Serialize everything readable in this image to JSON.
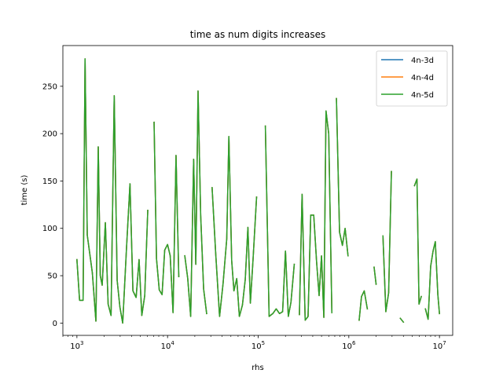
{
  "chart_data": {
    "type": "line",
    "title": "time as num digits increases",
    "xlabel": "rhs",
    "ylabel": "time (s)",
    "x_scale": "log",
    "xlim": [
      700,
      14000000
    ],
    "ylim": [
      -13,
      293
    ],
    "x_ticks": [
      {
        "value": 1000,
        "base": "10",
        "exp": "3"
      },
      {
        "value": 10000,
        "base": "10",
        "exp": "4"
      },
      {
        "value": 100000,
        "base": "10",
        "exp": "5"
      },
      {
        "value": 1000000,
        "base": "10",
        "exp": "6"
      },
      {
        "value": 10000000,
        "base": "10",
        "exp": "7"
      }
    ],
    "y_ticks": [
      0,
      50,
      100,
      150,
      200,
      250
    ],
    "grid": false,
    "legend_position": "top-right",
    "colors": {
      "4n-3d": "#1f77b4",
      "4n-4d": "#ff7f0e",
      "4n-5d": "#2ca02c"
    },
    "series": [
      {
        "name": "4n-3d",
        "segments": [
          [
            [
              1000,
              67
            ],
            [
              1070,
              24
            ],
            [
              1170,
              24
            ],
            [
              1230,
              279
            ],
            [
              1300,
              93
            ],
            [
              1480,
              53
            ],
            [
              1620,
              2
            ],
            [
              1720,
              186
            ],
            [
              1810,
              50
            ],
            [
              1900,
              40
            ],
            [
              2060,
              106
            ],
            [
              2210,
              20
            ],
            [
              2380,
              8
            ],
            [
              2580,
              240
            ],
            [
              2780,
              45
            ],
            [
              2980,
              17
            ],
            [
              3200,
              0
            ],
            [
              3520,
              78
            ],
            [
              3850,
              147
            ],
            [
              4150,
              34
            ],
            [
              4500,
              27
            ],
            [
              4850,
              67
            ],
            [
              5200,
              8
            ],
            [
              5600,
              29
            ],
            [
              6050,
              119
            ]
          ],
          [
            [
              7100,
              212
            ],
            [
              7550,
              68
            ],
            [
              8100,
              35
            ],
            [
              8700,
              30
            ],
            [
              9300,
              77
            ],
            [
              10000,
              83
            ],
            [
              10700,
              71
            ],
            [
              11500,
              11
            ],
            [
              12400,
              177
            ],
            [
              13300,
              49
            ]
          ],
          [
            [
              15500,
              71
            ],
            [
              16700,
              47
            ],
            [
              18000,
              7
            ],
            [
              19400,
              173
            ],
            [
              20500,
              62
            ],
            [
              21700,
              245
            ],
            [
              23200,
              114
            ],
            [
              25000,
              36
            ],
            [
              27000,
              10
            ]
          ],
          [
            [
              31000,
              143
            ],
            [
              34000,
              73
            ],
            [
              37500,
              7
            ],
            [
              41000,
              42
            ],
            [
              45000,
              89
            ],
            [
              47500,
              197
            ],
            [
              51000,
              66
            ],
            [
              54000,
              34
            ],
            [
              58000,
              47
            ],
            [
              62000,
              7
            ],
            [
              67000,
              19
            ],
            [
              72000,
              46
            ],
            [
              77000,
              101
            ],
            [
              82000,
              21
            ],
            [
              88000,
              69
            ],
            [
              96000,
              133
            ]
          ],
          [
            [
              120000,
              208
            ],
            [
              132000,
              7
            ],
            [
              145000,
              10
            ],
            [
              158000,
              15
            ],
            [
              172000,
              10
            ],
            [
              186000,
              12
            ],
            [
              200000,
              76
            ],
            [
              215000,
              7
            ],
            [
              230000,
              22
            ],
            [
              250000,
              62
            ]
          ],
          [
            [
              285000,
              9
            ],
            [
              305000,
              136
            ],
            [
              330000,
              3
            ],
            [
              355000,
              7
            ],
            [
              380000,
              114
            ],
            [
              410000,
              114
            ],
            [
              440000,
              66
            ],
            [
              470000,
              29
            ],
            [
              500000,
              71
            ],
            [
              530000,
              6
            ],
            [
              560000,
              224
            ],
            [
              600000,
              200
            ],
            [
              650000,
              11
            ]
          ],
          [
            [
              730000,
              237
            ],
            [
              790000,
              96
            ],
            [
              850000,
              82
            ],
            [
              910000,
              100
            ],
            [
              980000,
              71
            ]
          ],
          [
            [
              1300000,
              3
            ],
            [
              1380000,
              28
            ],
            [
              1480000,
              34
            ],
            [
              1600000,
              15
            ]
          ],
          [
            [
              1900000,
              59
            ],
            [
              2000000,
              41
            ]
          ],
          [
            [
              2380000,
              92
            ],
            [
              2560000,
              12
            ],
            [
              2750000,
              32
            ],
            [
              2950000,
              160
            ]
          ],
          [
            [
              3700000,
              5
            ],
            [
              4000000,
              1
            ]
          ],
          [
            [
              5300000,
              145
            ],
            [
              5650000,
              152
            ],
            [
              5950000,
              20
            ],
            [
              6300000,
              28
            ]
          ],
          [
            [
              7000000,
              15
            ],
            [
              7500000,
              4
            ],
            [
              8000000,
              60
            ],
            [
              8500000,
              76
            ],
            [
              9000000,
              86
            ],
            [
              9600000,
              30
            ],
            [
              10000000,
              10
            ]
          ]
        ]
      },
      {
        "name": "4n-4d",
        "same_as": "4n-3d"
      },
      {
        "name": "4n-5d",
        "same_as": "4n-3d"
      }
    ]
  }
}
